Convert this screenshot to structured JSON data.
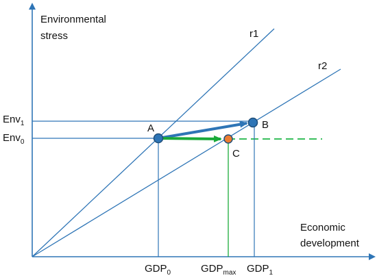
{
  "colors": {
    "axis": "#2E75B6",
    "line": "#2E75B6",
    "green": "#1AAA3A",
    "green_dash": "#1DB545",
    "point_fill": "#2E75B6",
    "point_c_fill": "#ED7D31",
    "point_stroke": "#1F4E79"
  },
  "axes": {
    "y_label_line1": "Environmental",
    "y_label_line2": "stress",
    "x_label_line1": "Economic",
    "x_label_line2": "development"
  },
  "lines": {
    "r1": "r1",
    "r2": "r2"
  },
  "points": {
    "A": "A",
    "B": "B",
    "C": "C"
  },
  "y_ticks": {
    "env1_base": "Env",
    "env1_sub": "1",
    "env0_base": "Env",
    "env0_sub": "0"
  },
  "x_ticks": {
    "gdp0_base": "GDP",
    "gdp0_sub": "0",
    "gdpmax_base": "GDP",
    "gdpmax_sub": "max",
    "gdp1_base": "GDP",
    "gdp1_sub": "1"
  }
}
